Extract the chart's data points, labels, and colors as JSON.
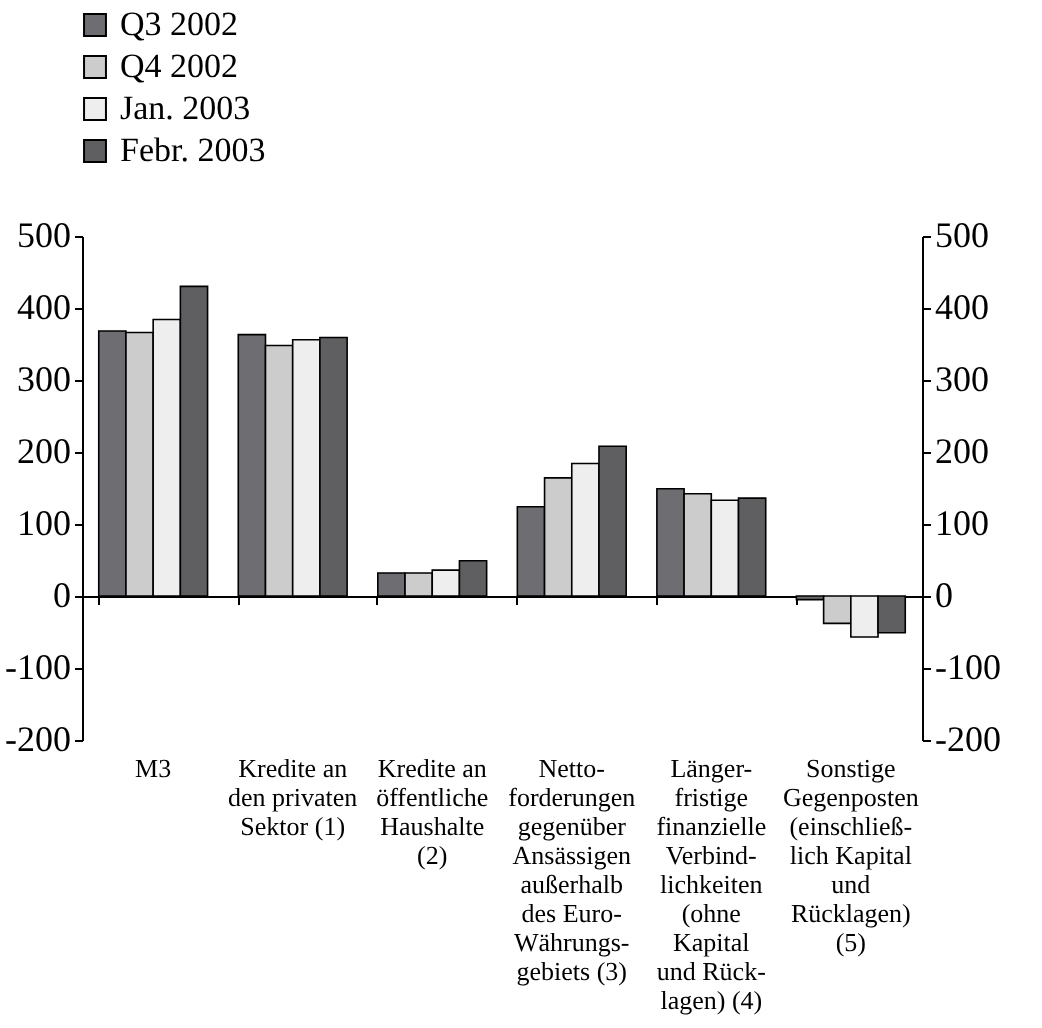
{
  "chart_data": {
    "type": "bar",
    "categories": [
      "M3",
      "Kredite an\nden privaten\nSektor (1)",
      "Kredite an\nöffentliche\nHaushalte\n(2)",
      "Netto-\nforderungen\ngegenüber\nAnsässigen\naußerhalb\ndes Euro-\nWährungs-\ngebiets (3)",
      "Länger-\nfristige\nfinanzielle\nVerbind-\nlichkeiten\n(ohne\nKapital\nund Rück-\nlagen) (4)",
      "Sonstige\nGegenposten\n(einschließ-\nlich Kapital\nund\nRücklagen)\n(5)"
    ],
    "series": [
      {
        "name": "Q3 2002",
        "color": "#6e6e72",
        "values": [
          368,
          363,
          32,
          124,
          149,
          -5
        ]
      },
      {
        "name": "Q4 2002",
        "color": "#cccccc",
        "values": [
          366,
          348,
          32,
          164,
          142,
          -38
        ]
      },
      {
        "name": "Jan. 2003",
        "color": "#eeeeee",
        "values": [
          384,
          356,
          36,
          184,
          133,
          -57
        ]
      },
      {
        "name": "Febr. 2003",
        "color": "#5f5f62",
        "values": [
          430,
          359,
          49,
          208,
          136,
          -51
        ]
      }
    ],
    "ylim": [
      -200,
      500
    ],
    "yticks": [
      -200,
      -100,
      0,
      100,
      200,
      300,
      400,
      500
    ],
    "y2lim": [
      -200,
      500
    ],
    "y2ticks": [
      -200,
      -100,
      0,
      100,
      200,
      300,
      400,
      500
    ],
    "legend": "top left"
  }
}
